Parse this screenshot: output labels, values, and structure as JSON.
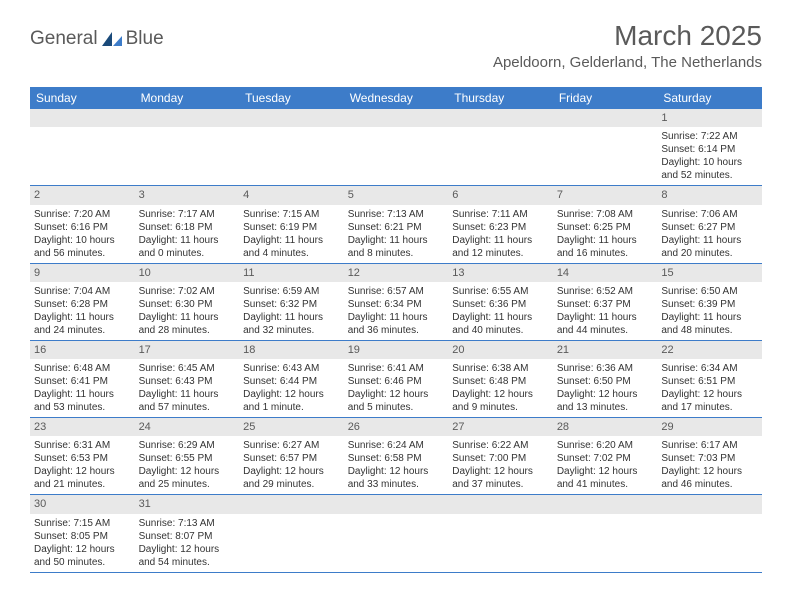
{
  "brand": {
    "name_part1": "General",
    "name_part2": "Blue",
    "text_color": "#5a5a5a",
    "icon_color_dark": "#1a4a7a",
    "icon_color_light": "#3d7cc9"
  },
  "title": "March 2025",
  "location": "Apeldoorn, Gelderland, The Netherlands",
  "colors": {
    "header_bg": "#3d7cc9",
    "header_text": "#ffffff",
    "daynum_bg": "#e8e8e8",
    "daynum_text": "#5a5a5a",
    "border": "#3d7cc9",
    "body_text": "#333333"
  },
  "day_headers": [
    "Sunday",
    "Monday",
    "Tuesday",
    "Wednesday",
    "Thursday",
    "Friday",
    "Saturday"
  ],
  "weeks": [
    [
      null,
      null,
      null,
      null,
      null,
      null,
      {
        "num": "1",
        "sunrise": "7:22 AM",
        "sunset": "6:14 PM",
        "daylight": "10 hours and 52 minutes."
      }
    ],
    [
      {
        "num": "2",
        "sunrise": "7:20 AM",
        "sunset": "6:16 PM",
        "daylight": "10 hours and 56 minutes."
      },
      {
        "num": "3",
        "sunrise": "7:17 AM",
        "sunset": "6:18 PM",
        "daylight": "11 hours and 0 minutes."
      },
      {
        "num": "4",
        "sunrise": "7:15 AM",
        "sunset": "6:19 PM",
        "daylight": "11 hours and 4 minutes."
      },
      {
        "num": "5",
        "sunrise": "7:13 AM",
        "sunset": "6:21 PM",
        "daylight": "11 hours and 8 minutes."
      },
      {
        "num": "6",
        "sunrise": "7:11 AM",
        "sunset": "6:23 PM",
        "daylight": "11 hours and 12 minutes."
      },
      {
        "num": "7",
        "sunrise": "7:08 AM",
        "sunset": "6:25 PM",
        "daylight": "11 hours and 16 minutes."
      },
      {
        "num": "8",
        "sunrise": "7:06 AM",
        "sunset": "6:27 PM",
        "daylight": "11 hours and 20 minutes."
      }
    ],
    [
      {
        "num": "9",
        "sunrise": "7:04 AM",
        "sunset": "6:28 PM",
        "daylight": "11 hours and 24 minutes."
      },
      {
        "num": "10",
        "sunrise": "7:02 AM",
        "sunset": "6:30 PM",
        "daylight": "11 hours and 28 minutes."
      },
      {
        "num": "11",
        "sunrise": "6:59 AM",
        "sunset": "6:32 PM",
        "daylight": "11 hours and 32 minutes."
      },
      {
        "num": "12",
        "sunrise": "6:57 AM",
        "sunset": "6:34 PM",
        "daylight": "11 hours and 36 minutes."
      },
      {
        "num": "13",
        "sunrise": "6:55 AM",
        "sunset": "6:36 PM",
        "daylight": "11 hours and 40 minutes."
      },
      {
        "num": "14",
        "sunrise": "6:52 AM",
        "sunset": "6:37 PM",
        "daylight": "11 hours and 44 minutes."
      },
      {
        "num": "15",
        "sunrise": "6:50 AM",
        "sunset": "6:39 PM",
        "daylight": "11 hours and 48 minutes."
      }
    ],
    [
      {
        "num": "16",
        "sunrise": "6:48 AM",
        "sunset": "6:41 PM",
        "daylight": "11 hours and 53 minutes."
      },
      {
        "num": "17",
        "sunrise": "6:45 AM",
        "sunset": "6:43 PM",
        "daylight": "11 hours and 57 minutes."
      },
      {
        "num": "18",
        "sunrise": "6:43 AM",
        "sunset": "6:44 PM",
        "daylight": "12 hours and 1 minute."
      },
      {
        "num": "19",
        "sunrise": "6:41 AM",
        "sunset": "6:46 PM",
        "daylight": "12 hours and 5 minutes."
      },
      {
        "num": "20",
        "sunrise": "6:38 AM",
        "sunset": "6:48 PM",
        "daylight": "12 hours and 9 minutes."
      },
      {
        "num": "21",
        "sunrise": "6:36 AM",
        "sunset": "6:50 PM",
        "daylight": "12 hours and 13 minutes."
      },
      {
        "num": "22",
        "sunrise": "6:34 AM",
        "sunset": "6:51 PM",
        "daylight": "12 hours and 17 minutes."
      }
    ],
    [
      {
        "num": "23",
        "sunrise": "6:31 AM",
        "sunset": "6:53 PM",
        "daylight": "12 hours and 21 minutes."
      },
      {
        "num": "24",
        "sunrise": "6:29 AM",
        "sunset": "6:55 PM",
        "daylight": "12 hours and 25 minutes."
      },
      {
        "num": "25",
        "sunrise": "6:27 AM",
        "sunset": "6:57 PM",
        "daylight": "12 hours and 29 minutes."
      },
      {
        "num": "26",
        "sunrise": "6:24 AM",
        "sunset": "6:58 PM",
        "daylight": "12 hours and 33 minutes."
      },
      {
        "num": "27",
        "sunrise": "6:22 AM",
        "sunset": "7:00 PM",
        "daylight": "12 hours and 37 minutes."
      },
      {
        "num": "28",
        "sunrise": "6:20 AM",
        "sunset": "7:02 PM",
        "daylight": "12 hours and 41 minutes."
      },
      {
        "num": "29",
        "sunrise": "6:17 AM",
        "sunset": "7:03 PM",
        "daylight": "12 hours and 46 minutes."
      }
    ],
    [
      {
        "num": "30",
        "sunrise": "7:15 AM",
        "sunset": "8:05 PM",
        "daylight": "12 hours and 50 minutes."
      },
      {
        "num": "31",
        "sunrise": "7:13 AM",
        "sunset": "8:07 PM",
        "daylight": "12 hours and 54 minutes."
      },
      null,
      null,
      null,
      null,
      null
    ]
  ],
  "labels": {
    "sunrise": "Sunrise:",
    "sunset": "Sunset:",
    "daylight": "Daylight:"
  }
}
